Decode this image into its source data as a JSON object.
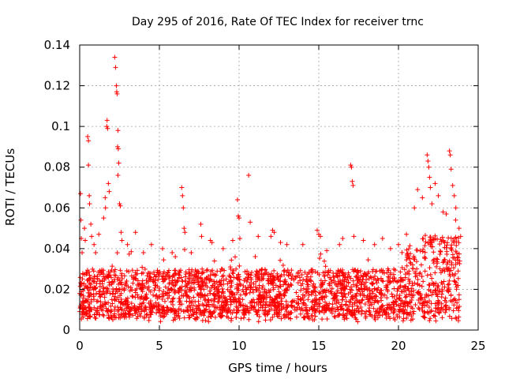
{
  "chart_data": {
    "type": "scatter",
    "title": "Day 295 of 2016, Rate Of TEC Index for receiver trnc",
    "xlabel": "GPS time / hours",
    "ylabel": "ROTI / TECUs",
    "xlim": [
      0,
      25
    ],
    "ylim": [
      0,
      0.14
    ],
    "x_ticks": [
      0,
      5,
      10,
      15,
      20,
      25
    ],
    "y_ticks": [
      0,
      0.02,
      0.04,
      0.06,
      0.08,
      0.1,
      0.12,
      0.14
    ],
    "x_tick_labels": [
      "0",
      "5",
      "10",
      "15",
      "20",
      "25"
    ],
    "y_tick_labels": [
      "0",
      "0.02",
      "0.04",
      "0.06",
      "0.08",
      "0.1",
      "0.12",
      "0.14"
    ],
    "grid": true,
    "marker": "+",
    "color": "#ff0000",
    "series": [
      {
        "name": "ROTI",
        "points": [
          [
            0.0,
            0.018
          ],
          [
            0.05,
            0.067
          ],
          [
            0.08,
            0.054
          ],
          [
            0.1,
            0.045
          ],
          [
            0.15,
            0.038
          ],
          [
            0.3,
            0.05
          ],
          [
            0.35,
            0.044
          ],
          [
            0.5,
            0.095
          ],
          [
            0.55,
            0.093
          ],
          [
            0.55,
            0.081
          ],
          [
            0.6,
            0.066
          ],
          [
            0.62,
            0.062
          ],
          [
            0.7,
            0.052
          ],
          [
            0.75,
            0.046
          ],
          [
            0.9,
            0.042
          ],
          [
            1.0,
            0.038
          ],
          [
            1.2,
            0.047
          ],
          [
            1.5,
            0.055
          ],
          [
            1.6,
            0.065
          ],
          [
            1.62,
            0.06
          ],
          [
            1.7,
            0.1
          ],
          [
            1.72,
            0.103
          ],
          [
            1.75,
            0.099
          ],
          [
            1.8,
            0.072
          ],
          [
            1.85,
            0.068
          ],
          [
            2.2,
            0.134
          ],
          [
            2.25,
            0.129
          ],
          [
            2.3,
            0.12
          ],
          [
            2.32,
            0.117
          ],
          [
            2.35,
            0.116
          ],
          [
            2.4,
            0.098
          ],
          [
            2.38,
            0.09
          ],
          [
            2.42,
            0.089
          ],
          [
            2.45,
            0.082
          ],
          [
            2.4,
            0.076
          ],
          [
            2.5,
            0.062
          ],
          [
            2.55,
            0.061
          ],
          [
            2.6,
            0.048
          ],
          [
            2.65,
            0.044
          ],
          [
            3.0,
            0.042
          ],
          [
            3.5,
            0.048
          ],
          [
            4.0,
            0.038
          ],
          [
            4.5,
            0.042
          ],
          [
            5.2,
            0.04
          ],
          [
            5.8,
            0.038
          ],
          [
            6.0,
            0.036
          ],
          [
            6.4,
            0.07
          ],
          [
            6.45,
            0.066
          ],
          [
            6.5,
            0.06
          ],
          [
            6.55,
            0.05
          ],
          [
            6.6,
            0.048
          ],
          [
            7.0,
            0.038
          ],
          [
            7.6,
            0.052
          ],
          [
            7.65,
            0.046
          ],
          [
            8.2,
            0.044
          ],
          [
            8.3,
            0.043
          ],
          [
            9.0,
            0.04
          ],
          [
            9.6,
            0.044
          ],
          [
            9.9,
            0.064
          ],
          [
            9.95,
            0.056
          ],
          [
            10.0,
            0.055
          ],
          [
            10.05,
            0.045
          ],
          [
            10.6,
            0.076
          ],
          [
            10.7,
            0.053
          ],
          [
            11.2,
            0.046
          ],
          [
            12.0,
            0.046
          ],
          [
            12.1,
            0.049
          ],
          [
            12.2,
            0.048
          ],
          [
            12.6,
            0.043
          ],
          [
            13.0,
            0.042
          ],
          [
            14.0,
            0.042
          ],
          [
            14.9,
            0.049
          ],
          [
            15.0,
            0.047
          ],
          [
            15.1,
            0.046
          ],
          [
            15.5,
            0.039
          ],
          [
            16.3,
            0.042
          ],
          [
            16.5,
            0.045
          ],
          [
            17.0,
            0.081
          ],
          [
            17.05,
            0.08
          ],
          [
            17.1,
            0.073
          ],
          [
            17.15,
            0.071
          ],
          [
            17.2,
            0.046
          ],
          [
            17.8,
            0.044
          ],
          [
            18.5,
            0.042
          ],
          [
            19.0,
            0.045
          ],
          [
            19.5,
            0.04
          ],
          [
            20.0,
            0.042
          ],
          [
            20.5,
            0.047
          ],
          [
            21.0,
            0.06
          ],
          [
            21.2,
            0.069
          ],
          [
            21.5,
            0.065
          ],
          [
            21.8,
            0.086
          ],
          [
            21.85,
            0.083
          ],
          [
            21.9,
            0.08
          ],
          [
            21.95,
            0.075
          ],
          [
            22.0,
            0.07
          ],
          [
            22.1,
            0.062
          ],
          [
            22.3,
            0.072
          ],
          [
            22.5,
            0.066
          ],
          [
            22.8,
            0.058
          ],
          [
            23.0,
            0.057
          ],
          [
            23.2,
            0.088
          ],
          [
            23.25,
            0.086
          ],
          [
            23.3,
            0.079
          ],
          [
            23.4,
            0.071
          ],
          [
            23.5,
            0.066
          ],
          [
            23.6,
            0.06
          ],
          [
            23.8,
            0.05
          ],
          [
            23.9,
            0.046
          ]
        ]
      }
    ]
  }
}
